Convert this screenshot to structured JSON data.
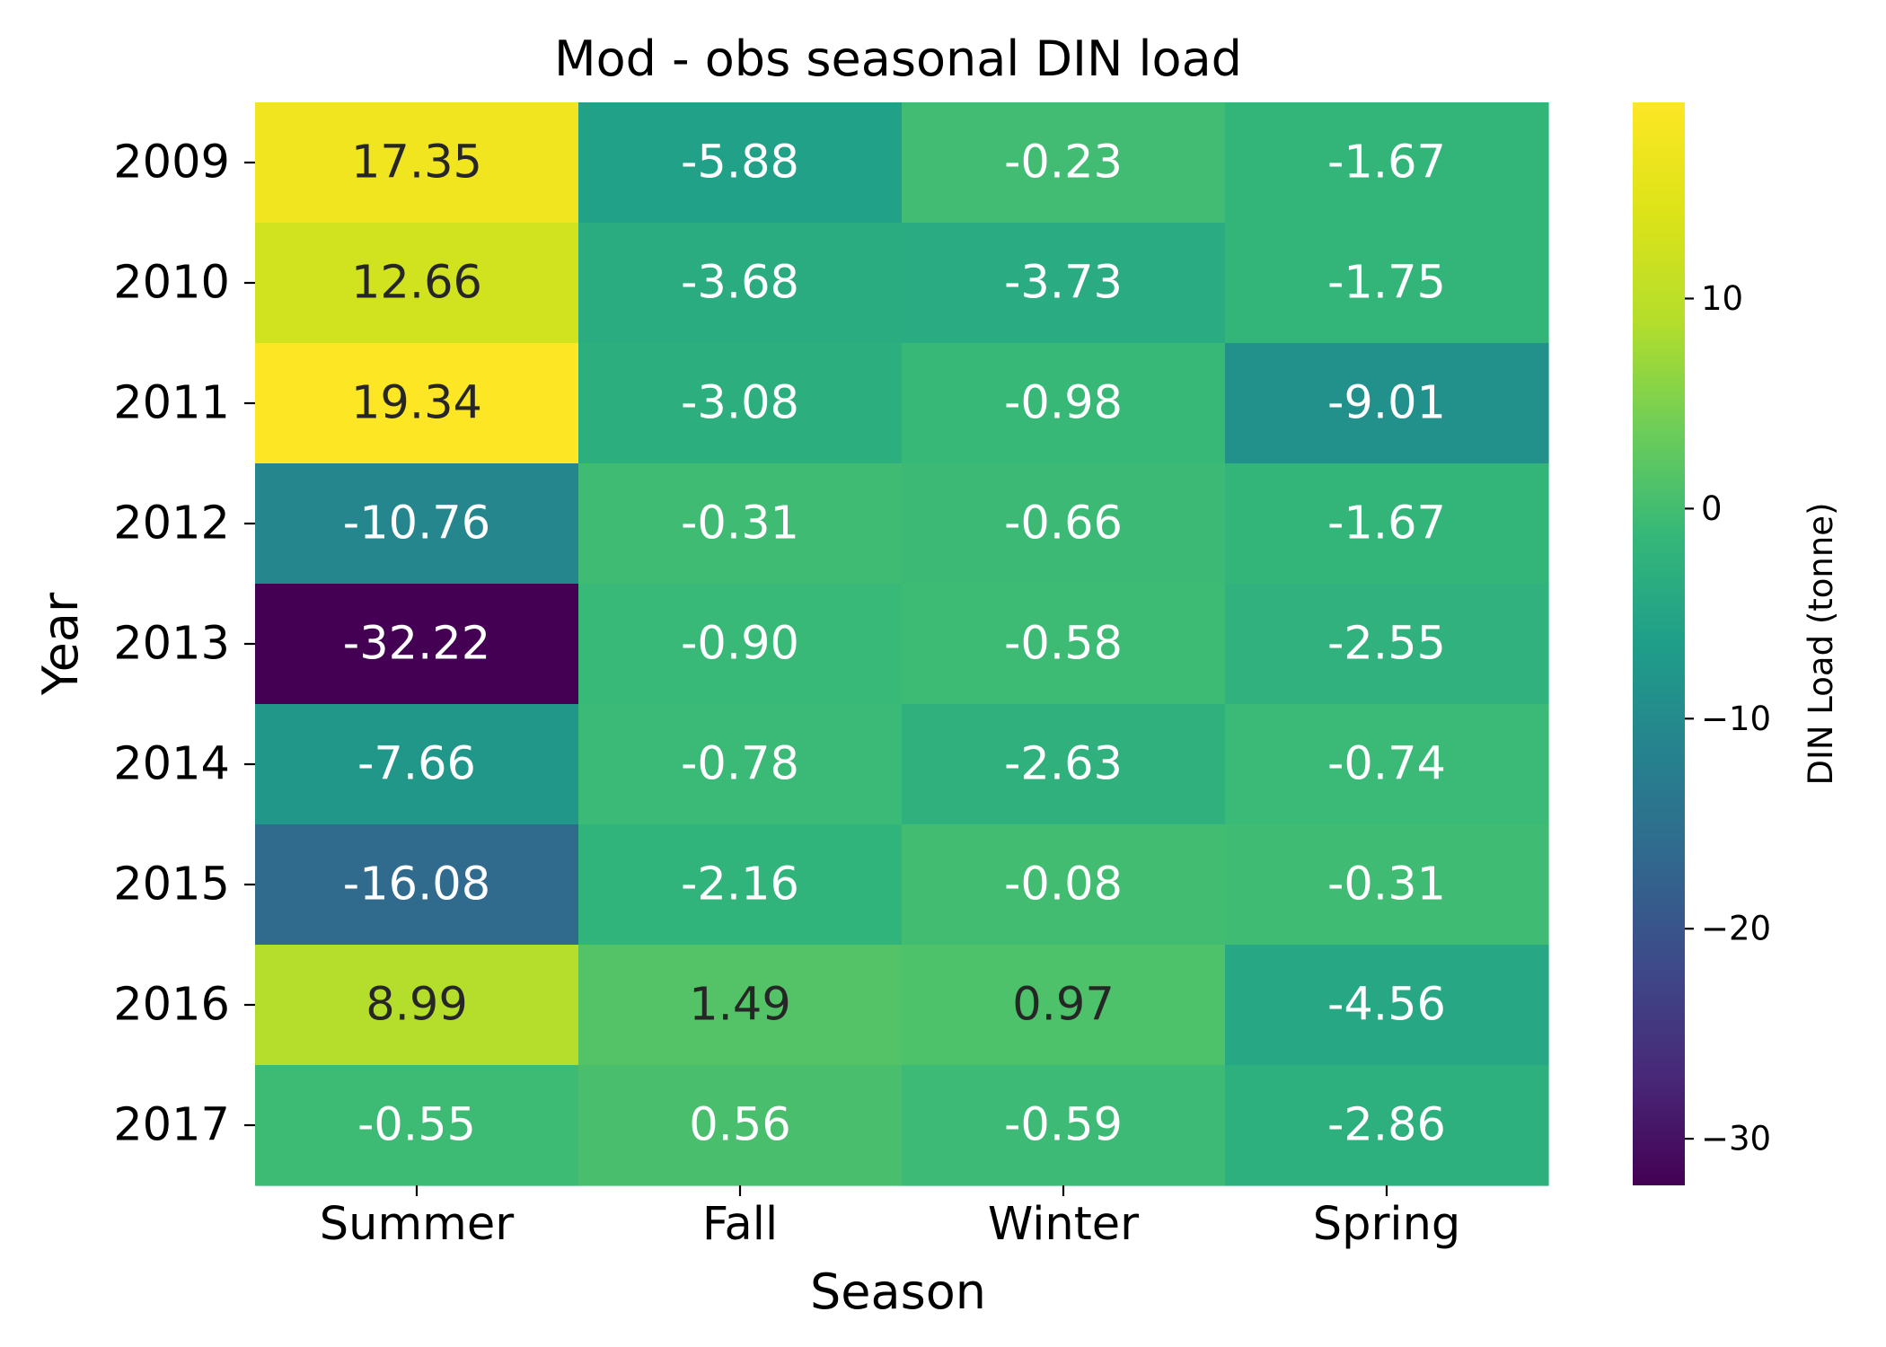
{
  "chart_data": {
    "type": "heatmap",
    "title": "Mod - obs seasonal DIN load",
    "xlabel": "Season",
    "ylabel": "Year",
    "colorbar_label": "DIN Load (tonne)",
    "colormap": "viridis",
    "value_range": [
      -32.22,
      19.34
    ],
    "colorbar_ticks": [
      10,
      0,
      -10,
      -20,
      -30
    ],
    "colorbar_tick_labels": [
      "10",
      "0",
      "−10",
      "−20",
      "−30"
    ],
    "columns": [
      "Summer",
      "Fall",
      "Winter",
      "Spring"
    ],
    "rows": [
      "2009",
      "2010",
      "2011",
      "2012",
      "2013",
      "2014",
      "2015",
      "2016",
      "2017"
    ],
    "values": [
      [
        17.35,
        -5.88,
        -0.23,
        -1.67
      ],
      [
        12.66,
        -3.68,
        -3.73,
        -1.75
      ],
      [
        19.34,
        -3.08,
        -0.98,
        -9.01
      ],
      [
        -10.76,
        -0.31,
        -0.66,
        -1.67
      ],
      [
        -32.22,
        -0.9,
        -0.58,
        -2.55
      ],
      [
        -7.66,
        -0.78,
        -2.63,
        -0.74
      ],
      [
        -16.08,
        -2.16,
        -0.08,
        -0.31
      ],
      [
        8.99,
        1.49,
        0.97,
        -4.56
      ],
      [
        -0.55,
        0.56,
        -0.59,
        -2.86
      ]
    ],
    "cell_labels": [
      [
        "17.35",
        "-5.88",
        "-0.23",
        "-1.67"
      ],
      [
        "12.66",
        "-3.68",
        "-3.73",
        "-1.75"
      ],
      [
        "19.34",
        "-3.08",
        "-0.98",
        "-9.01"
      ],
      [
        "-10.76",
        "-0.31",
        "-0.66",
        "-1.67"
      ],
      [
        "-32.22",
        "-0.90",
        "-0.58",
        "-2.55"
      ],
      [
        "-7.66",
        "-0.78",
        "-2.63",
        "-0.74"
      ],
      [
        "-16.08",
        "-2.16",
        "-0.08",
        "-0.31"
      ],
      [
        "8.99",
        "1.49",
        "0.97",
        "-4.56"
      ],
      [
        "-0.55",
        "0.56",
        "-0.59",
        "-2.86"
      ]
    ],
    "label_colors": {
      "light": "#ffffff",
      "dark": "#262626"
    }
  }
}
